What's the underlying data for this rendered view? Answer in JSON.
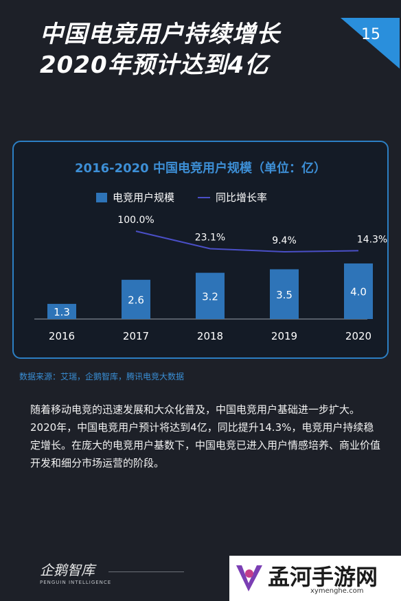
{
  "header": {
    "title_line1": "中国电竞用户持续增长",
    "title_line2": "2020年预计达到4亿",
    "page_number": "15"
  },
  "chart_data": {
    "type": "bar",
    "title": "2016-2020 中国电竞用户规模（单位：亿）",
    "categories": [
      "2016",
      "2017",
      "2018",
      "2019",
      "2020"
    ],
    "series": [
      {
        "name": "电竞用户规模",
        "type": "bar",
        "values": [
          1.3,
          2.6,
          3.2,
          3.5,
          4.0
        ],
        "labels": [
          "1.3",
          "2.6",
          "3.2",
          "3.5",
          "4.0"
        ],
        "color": "#2e74b8"
      },
      {
        "name": "同比增长率",
        "type": "line",
        "values": [
          100.0,
          23.1,
          9.4,
          14.3
        ],
        "x": [
          "2017",
          "2018",
          "2019",
          "2020"
        ],
        "labels": [
          "100.0%",
          "23.1%",
          "9.4%",
          "14.3%"
        ],
        "color": "#4a4fc7"
      }
    ],
    "xlabel": "",
    "ylabel": "",
    "legend": "top"
  },
  "source": "数据来源：艾瑞，企鹅智库，腾讯电竞大数据",
  "body_text": "随着移动电竞的迅速发展和大众化普及，中国电竞用户基础进一步扩大。2020年，中国电竞用户预计将达到4亿，同比提升14.3%，电竞用户持续稳定增长。在庞大的电竞用户基数下，中国电竞已进入用户情感培养、商业价值开发和细分市场运营的阶段。",
  "footer": {
    "logo": "企鹅智库",
    "logo_sub": "PENGUIN INTELLIGENCE",
    "watermark_name": "孟河手游网",
    "watermark_url": "xymenghe.com"
  }
}
